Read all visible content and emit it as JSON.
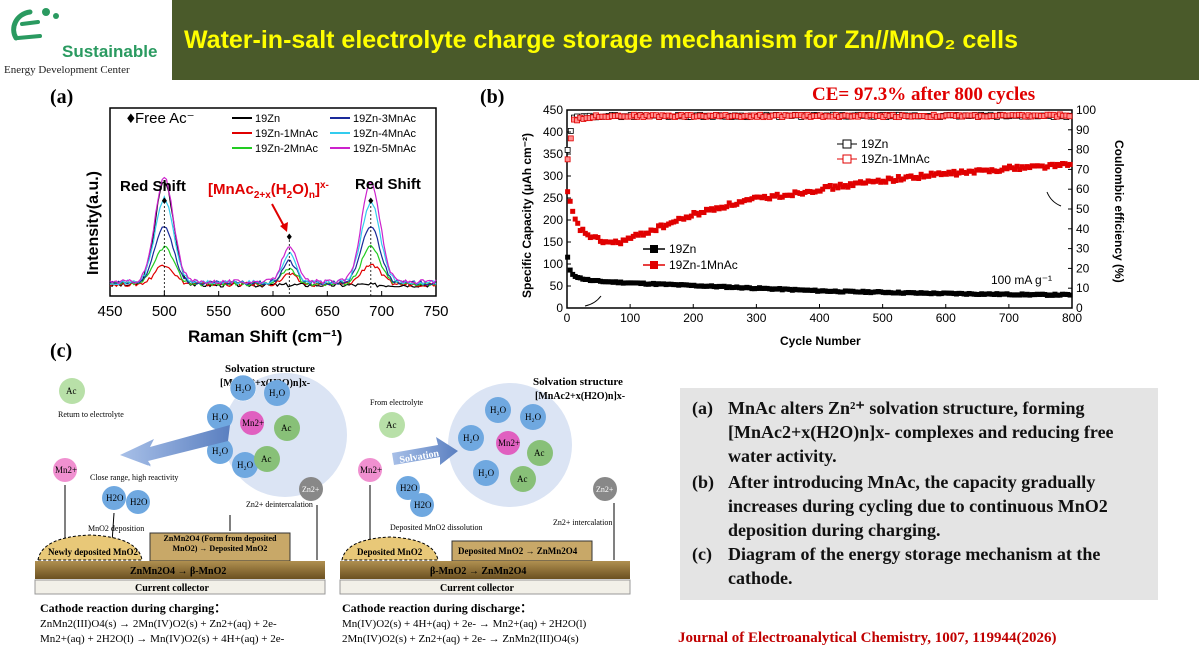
{
  "header": {
    "title": "Water-in-salt electrolyte charge storage mechanism for Zn//MnO₂  cells",
    "logo_name": "Sustainable",
    "logo_sub": "Energy Development Center"
  },
  "panel_labels": {
    "a": "(a)",
    "b": "(b)",
    "c": "(c)"
  },
  "colors": {
    "title_bg": "#4a5a2a",
    "title_text": "#ffff00",
    "accent_red": "#e00000",
    "s19Zn": "#000000",
    "s1MnAc": "#e00000",
    "s2MnAc": "#22cc22",
    "s3MnAc": "#1a2a9a",
    "s4MnAc": "#33ccee",
    "s5MnAc": "#cc22cc"
  },
  "chart_data": [
    {
      "type": "line",
      "title": "",
      "xlabel": "Raman Shift (cm⁻¹)",
      "ylabel": "Intensity(a.u.)",
      "xlim": [
        450,
        750
      ],
      "x_ticks": [
        450,
        500,
        550,
        600,
        650,
        700,
        750
      ],
      "legend_marker": "Free Ac⁻",
      "annotations": [
        "Red Shift",
        "[MnAc2+x(H2O)n]x-",
        "Red Shift"
      ],
      "peaks_x": [
        500,
        615,
        690
      ],
      "series": [
        {
          "name": "19Zn",
          "peak_heights": [
            0.62,
            0.0,
            0.0
          ]
        },
        {
          "name": "19Zn-1MnAc",
          "peak_heights": [
            0.12,
            0.06,
            0.12
          ]
        },
        {
          "name": "19Zn-2MnAc",
          "peak_heights": [
            0.22,
            0.09,
            0.22
          ]
        },
        {
          "name": "19Zn-3MnAc",
          "peak_heights": [
            0.34,
            0.13,
            0.34
          ]
        },
        {
          "name": "19Zn-4MnAc",
          "peak_heights": [
            0.5,
            0.17,
            0.48
          ]
        },
        {
          "name": "19Zn-5MnAc",
          "peak_heights": [
            0.62,
            0.22,
            0.6
          ]
        }
      ]
    },
    {
      "type": "scatter",
      "title": "CE= 97.3% after 800 cycles",
      "xlabel": "Cycle Number",
      "ylabel": "Specific Capacity (μAh cm⁻²)",
      "y2label": "Coulombic efficiency (%)",
      "xlim": [
        0,
        800
      ],
      "ylim": [
        0,
        450
      ],
      "y2lim": [
        0,
        100
      ],
      "x_ticks": [
        0,
        100,
        200,
        300,
        400,
        500,
        600,
        700,
        800
      ],
      "y_ticks": [
        0,
        50,
        100,
        150,
        200,
        250,
        300,
        350,
        400,
        450
      ],
      "y2_ticks": [
        0,
        10,
        20,
        30,
        40,
        50,
        60,
        70,
        80,
        90,
        100
      ],
      "rate_label": "100 mA g⁻¹",
      "capacity_series": [
        {
          "name": "19Zn",
          "x": [
            1,
            5,
            10,
            20,
            40,
            60,
            100,
            150,
            200,
            250,
            300,
            350,
            400,
            450,
            500,
            550,
            600,
            650,
            700,
            750,
            800
          ],
          "y": [
            115,
            85,
            75,
            68,
            62,
            60,
            57,
            54,
            51,
            48,
            45,
            42,
            39,
            37,
            36,
            34,
            33,
            32,
            31,
            30,
            30
          ]
        },
        {
          "name": "19Zn-1MnAc",
          "x": [
            1,
            5,
            10,
            20,
            40,
            60,
            80,
            100,
            150,
            200,
            250,
            300,
            350,
            400,
            450,
            500,
            550,
            600,
            650,
            700,
            750,
            800
          ],
          "y": [
            260,
            240,
            210,
            180,
            160,
            150,
            148,
            158,
            185,
            212,
            232,
            248,
            258,
            270,
            280,
            290,
            298,
            305,
            310,
            318,
            322,
            326
          ]
        }
      ],
      "ce_series": [
        {
          "name": "19Zn",
          "x": [
            1,
            10,
            50,
            100,
            200,
            300,
            400,
            500,
            600,
            700,
            800
          ],
          "y": [
            80,
            96,
            97,
            97,
            97,
            97,
            97,
            97,
            97,
            97,
            97
          ]
        },
        {
          "name": "19Zn-1MnAc",
          "x": [
            1,
            10,
            50,
            100,
            200,
            300,
            400,
            500,
            600,
            700,
            800
          ],
          "y": [
            75,
            95,
            97,
            97,
            97,
            97,
            97,
            97,
            97,
            97,
            97.3
          ]
        }
      ]
    }
  ],
  "diagram": {
    "charge": {
      "solvation_title": "Solvation structure",
      "solvation_formula": "[MnAc2+x(H2O)n]x-",
      "ac_label": "Ac",
      "return_label": "Return to electrolyte",
      "desolvation": "Desolvation",
      "mn_label": "Mn2+",
      "close_range": "Close range, high reactivity",
      "h2o": "H2O",
      "deposition": "MnO2 deposition",
      "zn_label": "Zn2+",
      "zn_deint": "Zn2+ deintercalation",
      "newly_deposited": "Newly deposited MnO2",
      "znmn_box": "ZnMn2O4 (Form from deposited MnO2) → Deposited MnO2",
      "base_reaction": "ZnMn2O4 → β-MnO2",
      "collector": "Current collector",
      "reaction_title": "Cathode reaction during charging：",
      "eq1": "ZnMn2(III)O4(s) → 2Mn(IV)O2(s) + Zn2+(aq) + 2e-",
      "eq2": "Mn2+(aq) + 2H2O(l) → Mn(IV)O2(s) + 4H+(aq) + 2e-"
    },
    "discharge": {
      "solvation_title": "Solvation structure",
      "solvation_formula": "[MnAc2+x(H2O)n]x-",
      "from_electrolyte": "From electrolyte",
      "ac_label": "Ac",
      "solvation": "Solvation",
      "mn_label": "Mn2+",
      "h2o": "H2O",
      "dissolution": "Deposited MnO2 dissolution",
      "zn_label": "Zn2+",
      "zn_int": "Zn2+ intercalation",
      "deposited": "Deposited MnO2",
      "box": "Deposited MnO2 → ZnMn2O4",
      "base_reaction": "β-MnO2 → ZnMn2O4",
      "collector": "Current collector",
      "reaction_title": "Cathode reaction during discharge：",
      "eq1": "Mn(IV)O2(s) + 4H+(aq) + 2e- → Mn2+(aq) + 2H2O(l)",
      "eq2": "2Mn(IV)O2(s) + Zn2+(aq) + 2e- → ZnMn2(III)O4(s)"
    }
  },
  "summary": {
    "items": [
      {
        "label": "(a)",
        "text": "MnAc alters Zn²⁺ solvation structure, forming [MnAc2+x(H2O)n]x- complexes and reducing free water activity."
      },
      {
        "label": "(b)",
        "text": "After introducing MnAc, the capacity gradually increases during cycling due to continuous MnO2 deposition during charging."
      },
      {
        "label": "(c)",
        "text": "Diagram of the energy storage mechanism at the cathode."
      }
    ]
  },
  "journal": "Journal of Electroanalytical Chemistry, 1007, 119944(2026)"
}
